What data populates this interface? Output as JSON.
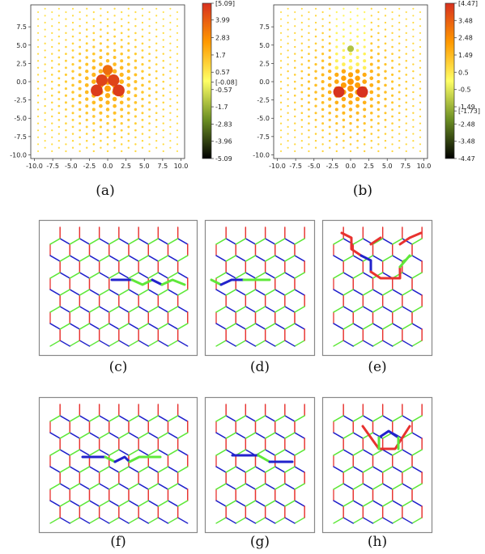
{
  "captions": [
    "(a)",
    "(b)",
    "(c)",
    "(d)",
    "(e)",
    "(f)",
    "(g)",
    "(h)"
  ],
  "chart_data": [
    {
      "type": "scatter",
      "panel": "(a)",
      "x_ticks": [
        "-10.0",
        "-7.5",
        "-5.0",
        "-2.5",
        "0.0",
        "2.5",
        "5.0",
        "7.5",
        "10.0"
      ],
      "y_ticks": [
        "7.5",
        "5.0",
        "2.5",
        "0.0",
        "-2.5",
        "-5.0",
        "-7.5",
        "-10.0"
      ],
      "xlim": [
        -10.5,
        10.5
      ],
      "ylim": [
        -10.5,
        10.5
      ],
      "colorbar_ticks": [
        "[5.09]",
        "3.99",
        "2.83",
        "1.7",
        "0.57",
        "[-0.08]",
        "-0.57",
        "-1.7",
        "-2.83",
        "-3.96",
        "-5.09"
      ],
      "colorbar_values": [
        5.09,
        3.99,
        2.83,
        1.7,
        0.57,
        -0.08,
        -0.57,
        -1.7,
        -2.83,
        -3.96,
        -5.09
      ],
      "colorbar_range": [
        -5.09,
        5.09
      ],
      "colormap": [
        "#000000",
        "#6b8e23",
        "#ffff66",
        "#ff9900",
        "#d7301f"
      ],
      "highlight_points": [
        {
          "x": -1.5,
          "y": -1.2,
          "value": 4.8
        },
        {
          "x": 1.5,
          "y": -1.2,
          "value": 4.8
        },
        {
          "x": -0.8,
          "y": 0.2,
          "value": 4.6
        },
        {
          "x": 0.8,
          "y": 0.2,
          "value": 4.6
        },
        {
          "x": 0,
          "y": 1.6,
          "value": 3.6
        }
      ]
    },
    {
      "type": "scatter",
      "panel": "(b)",
      "x_ticks": [
        "-10.0",
        "-7.5",
        "-5.0",
        "-2.5",
        "0.0",
        "2.5",
        "5.0",
        "7.5",
        "10.0"
      ],
      "y_ticks": [
        "7.5",
        "5.0",
        "2.5",
        "0.0",
        "-2.5",
        "-5.0",
        "-7.5",
        "-10.0"
      ],
      "xlim": [
        -10.5,
        10.5
      ],
      "ylim": [
        -10.5,
        10.5
      ],
      "colorbar_ticks": [
        "[4.47]",
        "3.48",
        "2.48",
        "1.49",
        "0.5",
        "-0.5",
        "-1.49",
        "[-1.73]",
        "-2.48",
        "-3.48",
        "-4.47"
      ],
      "colorbar_values": [
        4.47,
        3.48,
        2.48,
        1.49,
        0.5,
        -0.5,
        -1.49,
        -1.73,
        -2.48,
        -3.48,
        -4.47
      ],
      "colorbar_range": [
        -4.47,
        4.47
      ],
      "colormap": [
        "#000000",
        "#6b8e23",
        "#ffff66",
        "#ff9900",
        "#d7301f"
      ],
      "highlight_points": [
        {
          "x": -1.6,
          "y": -1.4,
          "value": 4.4
        },
        {
          "x": 1.6,
          "y": -1.4,
          "value": 4.4
        },
        {
          "x": 0,
          "y": 4.5,
          "value": -1.2
        }
      ]
    }
  ],
  "lattice_colors": {
    "red": "#e8322f",
    "green": "#5fe83a",
    "blue": "#2222cc",
    "frame": "#888888"
  }
}
